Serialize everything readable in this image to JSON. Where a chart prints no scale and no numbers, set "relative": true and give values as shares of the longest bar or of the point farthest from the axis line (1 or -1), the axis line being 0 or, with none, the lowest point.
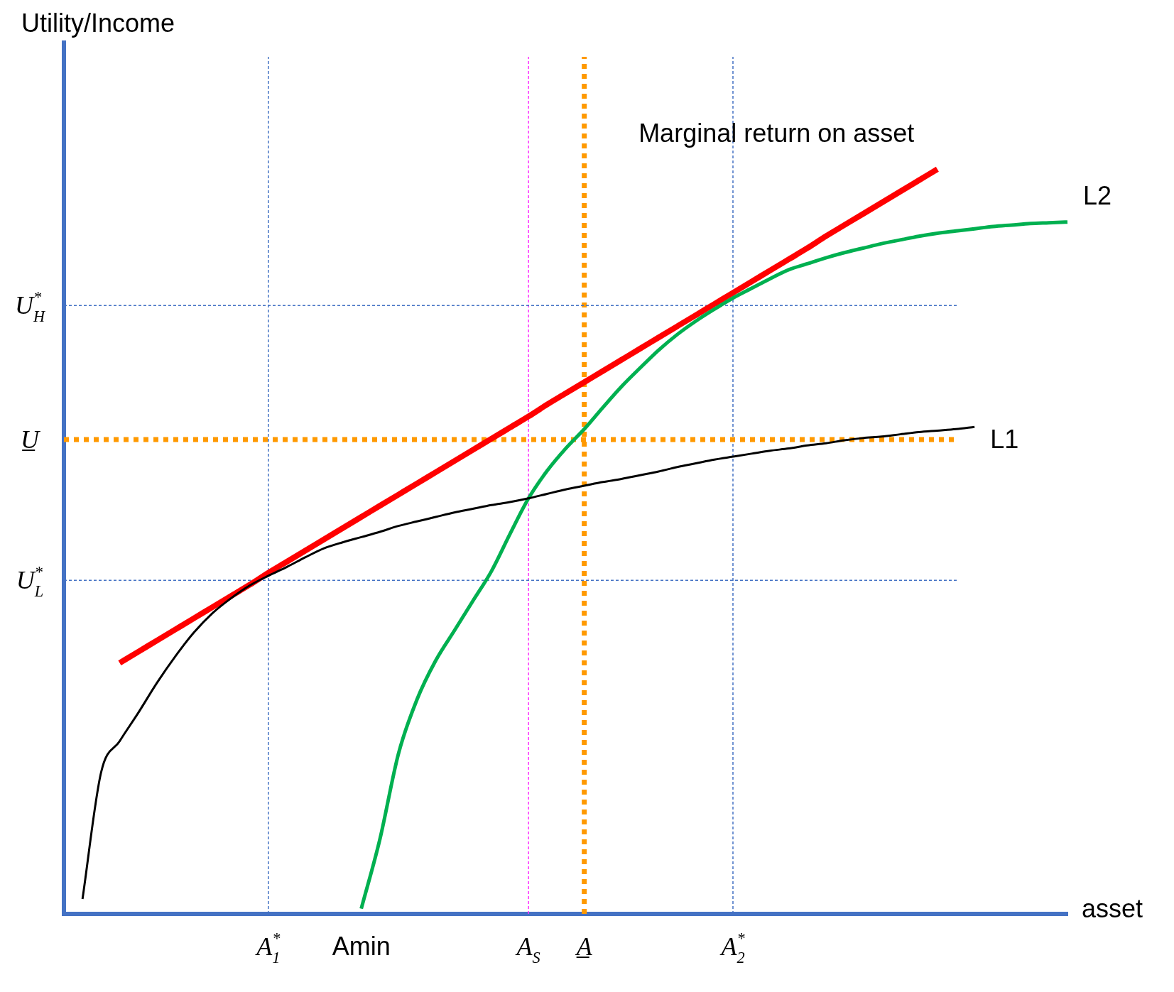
{
  "chart_data": {
    "type": "line",
    "relative": true,
    "xlabel": "asset",
    "grid": false,
    "legend": false,
    "marker": "none",
    "categories": [
      null,
      null,
      null,
      null,
      null,
      null,
      null,
      null,
      null,
      null,
      null,
      "A$_{1}$$^{*}$",
      null,
      null,
      null,
      null,
      "Amin",
      null,
      null,
      null,
      null,
      null,
      null,
      null,
      null,
      "A$_{S}$",
      null,
      null,
      "A̲",
      null,
      null,
      null,
      null,
      null,
      null,
      null,
      "A$_{2}$$^{*}$",
      null,
      null,
      null,
      null,
      null,
      null,
      null,
      null,
      null,
      null,
      null,
      null,
      null,
      null,
      null,
      null,
      null,
      null
    ],
    "series": [
      {
        "name": "L1",
        "color": "#000000",
        "values": [
          null,
          0.02,
          0.19,
          0.232,
          0.27,
          0.31,
          0.346,
          0.378,
          0.404,
          0.424,
          0.441,
          0.454,
          0.466,
          0.479,
          0.491,
          0.499,
          0.506,
          0.513,
          0.521,
          0.527,
          0.533,
          0.539,
          0.544,
          0.549,
          0.553,
          0.558,
          0.564,
          0.57,
          0.575,
          0.58,
          0.584,
          0.589,
          0.594,
          0.6,
          0.605,
          0.61,
          0.614,
          0.618,
          0.622,
          0.625,
          0.629,
          0.632,
          0.636,
          0.639,
          0.641,
          0.644,
          0.647,
          0.649,
          0.651,
          0.654,
          null,
          null,
          null,
          null,
          null
        ]
      },
      {
        "name": "L2",
        "color": "#00b050",
        "values": [
          null,
          null,
          null,
          null,
          null,
          null,
          null,
          null,
          null,
          null,
          null,
          null,
          null,
          null,
          null,
          null,
          0.007,
          0.1,
          0.215,
          0.288,
          0.34,
          0.38,
          0.42,
          0.46,
          0.51,
          0.558,
          0.595,
          0.625,
          0.651,
          0.68,
          0.708,
          0.733,
          0.757,
          0.778,
          0.796,
          0.812,
          0.827,
          0.84,
          0.853,
          0.865,
          0.873,
          0.881,
          0.888,
          0.894,
          0.9,
          0.905,
          0.91,
          0.914,
          0.917,
          0.92,
          0.923,
          0.925,
          0.927,
          0.928,
          0.929
        ]
      },
      {
        "color": "#ff0000",
        "values": [
          null,
          null,
          null,
          0.337,
          0.352,
          0.367,
          0.382,
          0.397,
          0.412,
          0.427,
          0.442,
          0.458,
          0.473,
          0.488,
          0.503,
          0.518,
          0.533,
          0.548,
          0.563,
          0.578,
          0.593,
          0.608,
          0.623,
          0.638,
          0.653,
          0.668,
          0.684,
          0.699,
          0.714,
          0.729,
          0.744,
          0.759,
          0.774,
          0.789,
          0.804,
          0.819,
          0.834,
          0.849,
          0.864,
          0.879,
          0.894,
          0.91,
          0.925,
          0.94,
          0.955,
          0.97,
          0.985,
          1.0,
          null,
          null,
          null,
          null,
          null,
          null,
          null
        ]
      }
    ],
    "ref_lines": [
      {
        "axis": "x",
        "value": "A$_{1}$$^{*}$",
        "color": "#4472c4",
        "line_style": "dashed"
      },
      {
        "axis": "x",
        "value": "A$_{S}$",
        "color": "#ff33ff",
        "line_style": "dashed"
      },
      {
        "axis": "x",
        "value": "A̲",
        "color": "#ff9900",
        "line_style": "dotted"
      },
      {
        "axis": "x",
        "value": "A$_{2}$$^{*}$",
        "color": "#4472c4",
        "line_style": "dashed"
      },
      {
        "axis": "y",
        "value": 0.817,
        "label": "U$_{H}$$^{*}$",
        "color": "#4472c4",
        "line_style": "dashed"
      },
      {
        "axis": "y",
        "value": 0.637,
        "label": "U̲",
        "color": "#ff9900",
        "line_style": "dotted"
      },
      {
        "axis": "y",
        "value": 0.448,
        "label": "U$_{L}$$^{*}$",
        "color": "#4472c4",
        "line_style": "dashed"
      }
    ],
    "annotations": [
      "Utility/Income",
      "Marginal return on asset"
    ]
  }
}
